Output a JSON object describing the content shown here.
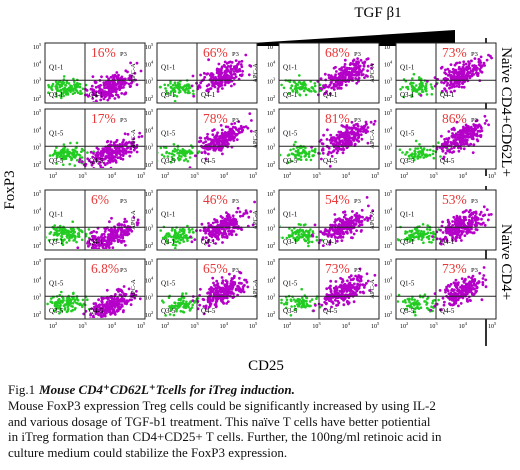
{
  "figure": {
    "gradient_label": "TGF β1",
    "y_axis_label": "FoxP3",
    "x_axis_label": "CD25",
    "group_labels": [
      "Naïve CD4+CD62L+",
      "Naïve CD4+"
    ],
    "apc_label": "APC-A",
    "gate_label": "P3"
  },
  "chart_data": {
    "type": "scatter",
    "title": "",
    "xlabel": "CD25",
    "ylabel": "FoxP3",
    "x_scale": "log",
    "y_scale": "log",
    "x_ticks": [
      "10^2",
      "10^3",
      "10^4",
      "10^5"
    ],
    "y_ticks": [
      "10^2",
      "10^3",
      "10^4",
      "10^5"
    ],
    "panels": [
      {
        "row": 1,
        "col": 1,
        "value": "16%",
        "upper_gate": "Q1-1",
        "lower_gate": "Q3-1",
        "lower_right_gate": "Q4-1"
      },
      {
        "row": 1,
        "col": 2,
        "value": "66%",
        "upper_gate": "Q1-1",
        "lower_gate": "Q3-1",
        "lower_right_gate": "Q4-1"
      },
      {
        "row": 1,
        "col": 3,
        "value": "68%",
        "upper_gate": "Q1-1",
        "lower_gate": "Q3-1",
        "lower_right_gate": "Q4-1"
      },
      {
        "row": 1,
        "col": 4,
        "value": "73%",
        "upper_gate": "Q1-1",
        "lower_gate": "Q3-1",
        "lower_right_gate": "Q4-1"
      },
      {
        "row": 2,
        "col": 1,
        "value": "17%",
        "upper_gate": "Q1-5",
        "lower_gate": "Q3-5",
        "lower_right_gate": "Q4-5"
      },
      {
        "row": 2,
        "col": 2,
        "value": "78%",
        "upper_gate": "Q1-5",
        "lower_gate": "Q3-5",
        "lower_right_gate": "Q4-5"
      },
      {
        "row": 2,
        "col": 3,
        "value": "81%",
        "upper_gate": "Q1-5",
        "lower_gate": "Q3-5",
        "lower_right_gate": "Q4-5"
      },
      {
        "row": 2,
        "col": 4,
        "value": "86%",
        "upper_gate": "Q1-5",
        "lower_gate": "Q3-5",
        "lower_right_gate": "Q4-5"
      },
      {
        "row": 3,
        "col": 1,
        "value": "6%",
        "upper_gate": "Q1-1",
        "lower_gate": "Q3-1",
        "lower_right_gate": "Q4-1"
      },
      {
        "row": 3,
        "col": 2,
        "value": "46%",
        "upper_gate": "Q1-1",
        "lower_gate": "Q3-1",
        "lower_right_gate": "Q4-1"
      },
      {
        "row": 3,
        "col": 3,
        "value": "54%",
        "upper_gate": "Q1-1",
        "lower_gate": "Q3-1",
        "lower_right_gate": "Q4-1"
      },
      {
        "row": 3,
        "col": 4,
        "value": "53%",
        "upper_gate": "Q1-1",
        "lower_gate": "Q3-1",
        "lower_right_gate": "Q4-1"
      },
      {
        "row": 4,
        "col": 1,
        "value": "6.8%",
        "upper_gate": "Q1-5",
        "lower_gate": "Q3-5",
        "lower_right_gate": "Q4-5"
      },
      {
        "row": 4,
        "col": 2,
        "value": "65%",
        "upper_gate": "Q1-5",
        "lower_gate": "Q3-5",
        "lower_right_gate": "Q4-5"
      },
      {
        "row": 4,
        "col": 3,
        "value": "73%",
        "upper_gate": "Q1-5",
        "lower_gate": "Q3-5",
        "lower_right_gate": "Q4-5"
      },
      {
        "row": 4,
        "col": 4,
        "value": "73%",
        "upper_gate": "Q1-5",
        "lower_gate": "Q3-5",
        "lower_right_gate": "Q4-5"
      }
    ],
    "colors": {
      "population": "#b400c8",
      "negative_population": "#22cc22",
      "value_label": "#e83a3a",
      "gate_line": "#222222"
    }
  },
  "caption": {
    "label": "Fig.1",
    "title": "Mouse CD4⁺CD62L⁺Tcells for iTreg induction.",
    "lines": [
      "Mouse FoxP3 expression Treg cells could be significantly increased by using IL-2",
      "and various dosage of TGF-b1 treatment. This naïve T cells have better potiential",
      "in iTreg formation than CD4+CD25+ T cells. Further, the 100ng/ml retinoic acid in",
      "culture medium could stabilize the FoxP3 expression."
    ]
  }
}
